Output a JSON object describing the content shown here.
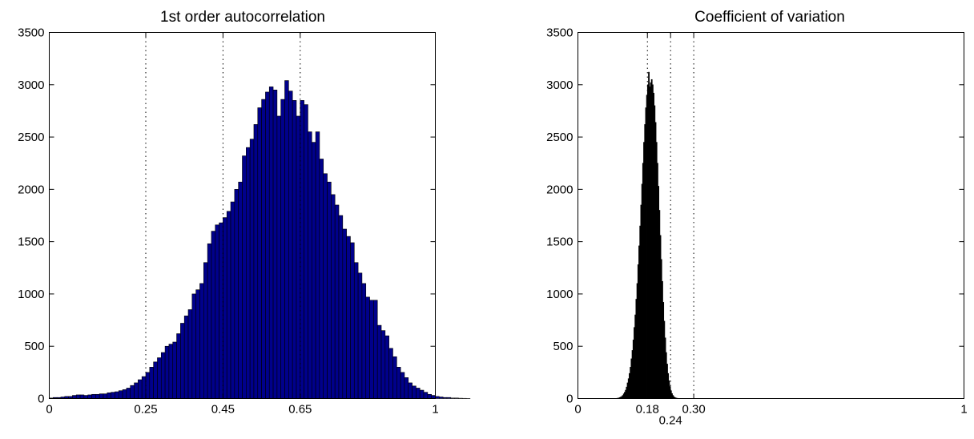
{
  "chart_data": [
    {
      "type": "bar",
      "title": "1st order autocorrelation",
      "xlabel": "",
      "ylabel": "",
      "xlim": [
        0,
        1
      ],
      "ylim": [
        0,
        3500
      ],
      "bar_color": "#00008b",
      "bar_edge_color": "#000000",
      "x_ticks": [
        {
          "value": 0,
          "label": "0"
        },
        {
          "value": 0.25,
          "label": "0.25"
        },
        {
          "value": 0.45,
          "label": "0.45"
        },
        {
          "value": 0.65,
          "label": "0.65"
        },
        {
          "value": 1,
          "label": "1"
        }
      ],
      "y_ticks": [
        {
          "value": 0,
          "label": "0"
        },
        {
          "value": 500,
          "label": "500"
        },
        {
          "value": 1000,
          "label": "1000"
        },
        {
          "value": 1500,
          "label": "1500"
        },
        {
          "value": 2000,
          "label": "2000"
        },
        {
          "value": 2500,
          "label": "2500"
        },
        {
          "value": 3000,
          "label": "3000"
        },
        {
          "value": 3500,
          "label": "3500"
        }
      ],
      "reference_lines": [
        0.25,
        0.45,
        0.65
      ],
      "bins": {
        "start": 0,
        "width": 0.01,
        "counts": [
          5,
          10,
          10,
          15,
          20,
          20,
          30,
          35,
          35,
          30,
          35,
          40,
          40,
          45,
          45,
          55,
          60,
          65,
          75,
          85,
          100,
          125,
          150,
          180,
          210,
          250,
          300,
          350,
          390,
          440,
          500,
          520,
          540,
          620,
          720,
          790,
          850,
          1000,
          1040,
          1100,
          1300,
          1480,
          1600,
          1660,
          1680,
          1730,
          1790,
          1880,
          2000,
          2070,
          2320,
          2400,
          2480,
          2620,
          2780,
          2860,
          2930,
          2980,
          2950,
          2700,
          2860,
          3040,
          2940,
          2850,
          2700,
          2850,
          2810,
          2550,
          2450,
          2550,
          2290,
          2150,
          2070,
          1950,
          1850,
          1750,
          1620,
          1550,
          1490,
          1300,
          1200,
          1100,
          970,
          940,
          940,
          700,
          650,
          600,
          480,
          400,
          300,
          250,
          200,
          150,
          120,
          100,
          80,
          60,
          40,
          30,
          20,
          15,
          10,
          10,
          5,
          5,
          3,
          2,
          1,
          0
        ]
      }
    },
    {
      "type": "bar",
      "title": "Coefficient of variation",
      "xlabel": "",
      "ylabel": "",
      "xlim": [
        0,
        1
      ],
      "ylim": [
        0,
        3500
      ],
      "bar_color": "#000000",
      "bar_edge_color": "#000000",
      "x_ticks": [
        {
          "value": 0,
          "label": "0"
        },
        {
          "value": 0.18,
          "label": "0.18"
        },
        {
          "value": 0.24,
          "label": "0.24",
          "below": true
        },
        {
          "value": 0.3,
          "label": "0.30"
        },
        {
          "value": 1,
          "label": "1"
        }
      ],
      "y_ticks": [
        {
          "value": 0,
          "label": "0"
        },
        {
          "value": 500,
          "label": "500"
        },
        {
          "value": 1000,
          "label": "1000"
        },
        {
          "value": 1500,
          "label": "1500"
        },
        {
          "value": 2000,
          "label": "2000"
        },
        {
          "value": 2500,
          "label": "2500"
        },
        {
          "value": 3000,
          "label": "3000"
        },
        {
          "value": 3500,
          "label": "3500"
        }
      ],
      "reference_lines": [
        0.18,
        0.24,
        0.3
      ],
      "bins": {
        "start": 0.1,
        "width": 0.0025,
        "counts": [
          2,
          4,
          6,
          10,
          15,
          20,
          30,
          45,
          60,
          80,
          110,
          150,
          190,
          240,
          300,
          380,
          460,
          560,
          680,
          800,
          950,
          1100,
          1280,
          1460,
          1650,
          1850,
          2050,
          2250,
          2450,
          2620,
          2780,
          2900,
          3000,
          3120,
          2980,
          3020,
          3050,
          3000,
          2920,
          2800,
          2640,
          2450,
          2250,
          2030,
          1800,
          1560,
          1330,
          1120,
          920,
          740,
          580,
          440,
          330,
          240,
          170,
          115,
          75,
          48,
          30,
          18,
          10,
          6,
          3,
          2,
          1
        ]
      }
    }
  ]
}
